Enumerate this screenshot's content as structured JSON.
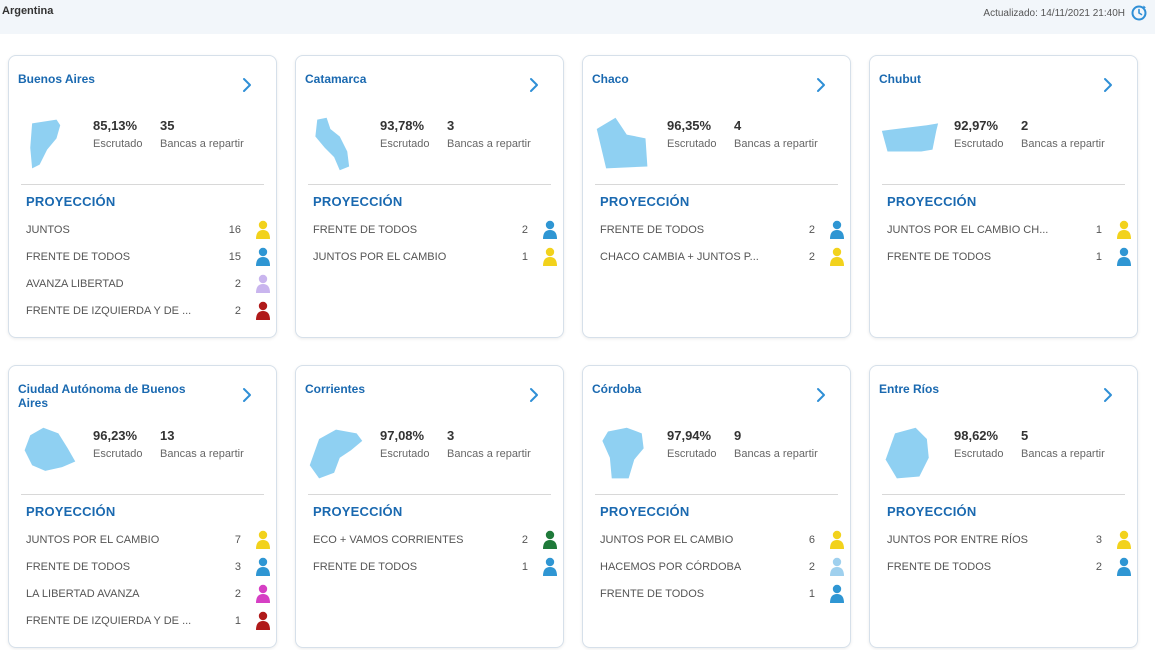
{
  "header": {
    "title": "Argentina",
    "updated": "Actualizado: 14/11/2021 21:40H"
  },
  "labels": {
    "escrutado": "Escrutado",
    "bancas": "Bancas a repartir",
    "proyeccion": "PROYECCIÓN"
  },
  "provinces": [
    {
      "name": "Buenos Aires",
      "pct": "85,13%",
      "seats": "35",
      "parties": [
        {
          "name": "JUNTOS",
          "seats": "16",
          "color": "#f2d21c"
        },
        {
          "name": "FRENTE DE TODOS",
          "seats": "15",
          "color": "#2f96d3"
        },
        {
          "name": "AVANZA LIBERTAD",
          "seats": "2",
          "color": "#c9b5ee"
        },
        {
          "name": "FRENTE DE IZQUIERDA Y DE ...",
          "seats": "2",
          "color": "#b01a1a"
        }
      ]
    },
    {
      "name": "Catamarca",
      "pct": "93,78%",
      "seats": "3",
      "parties": [
        {
          "name": "FRENTE DE TODOS",
          "seats": "2",
          "color": "#2f96d3"
        },
        {
          "name": "JUNTOS POR EL CAMBIO",
          "seats": "1",
          "color": "#f2d21c"
        }
      ]
    },
    {
      "name": "Chaco",
      "pct": "96,35%",
      "seats": "4",
      "parties": [
        {
          "name": "FRENTE DE TODOS",
          "seats": "2",
          "color": "#2f96d3"
        },
        {
          "name": "CHACO CAMBIA + JUNTOS P...",
          "seats": "2",
          "color": "#f2d21c"
        }
      ]
    },
    {
      "name": "Chubut",
      "pct": "92,97%",
      "seats": "2",
      "parties": [
        {
          "name": "JUNTOS POR EL CAMBIO CH...",
          "seats": "1",
          "color": "#f2d21c"
        },
        {
          "name": "FRENTE DE TODOS",
          "seats": "1",
          "color": "#2f96d3"
        }
      ]
    },
    {
      "name": "Ciudad Autónoma de Buenos Aires",
      "pct": "96,23%",
      "seats": "13",
      "parties": [
        {
          "name": "JUNTOS POR EL CAMBIO",
          "seats": "7",
          "color": "#f2d21c"
        },
        {
          "name": "FRENTE DE TODOS",
          "seats": "3",
          "color": "#2f96d3"
        },
        {
          "name": "LA LIBERTAD AVANZA",
          "seats": "2",
          "color": "#d63fc4"
        },
        {
          "name": "FRENTE DE IZQUIERDA Y DE ...",
          "seats": "1",
          "color": "#b01a1a"
        }
      ]
    },
    {
      "name": "Corrientes",
      "pct": "97,08%",
      "seats": "3",
      "parties": [
        {
          "name": "ECO + VAMOS CORRIENTES",
          "seats": "2",
          "color": "#1f7a3a"
        },
        {
          "name": "FRENTE DE TODOS",
          "seats": "1",
          "color": "#2f96d3"
        }
      ]
    },
    {
      "name": "Córdoba",
      "pct": "97,94%",
      "seats": "9",
      "parties": [
        {
          "name": "JUNTOS POR EL CAMBIO",
          "seats": "6",
          "color": "#f2d21c"
        },
        {
          "name": "HACEMOS POR CÓRDOBA",
          "seats": "2",
          "color": "#9fd0ee"
        },
        {
          "name": "FRENTE DE TODOS",
          "seats": "1",
          "color": "#2f96d3"
        }
      ]
    },
    {
      "name": "Entre Ríos",
      "pct": "98,62%",
      "seats": "5",
      "parties": [
        {
          "name": "JUNTOS POR ENTRE RÍOS",
          "seats": "3",
          "color": "#f2d21c"
        },
        {
          "name": "FRENTE DE TODOS",
          "seats": "2",
          "color": "#2f96d3"
        }
      ]
    }
  ],
  "colors": {
    "accent": "#1a69b0",
    "map_fill": "#8fd0f2"
  }
}
